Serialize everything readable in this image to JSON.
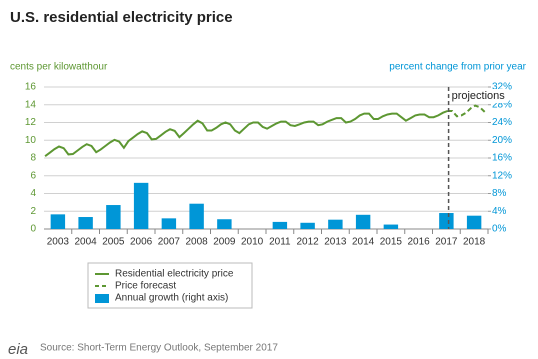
{
  "chart_data": {
    "type": "combo",
    "title": "U.S. residential electricity price",
    "y_label": "cents per kilowatthour",
    "y2_label": "percent change from prior year",
    "source": "Source: Short-Term Energy Outlook, September 2017",
    "logo": "eia",
    "annotations": [
      {
        "text": "projections",
        "x": 2017.58
      }
    ],
    "x": [
      2003.04,
      2003.21,
      2003.38,
      2003.54,
      2003.71,
      2003.88,
      2004.04,
      2004.21,
      2004.38,
      2004.54,
      2004.71,
      2004.88,
      2005.04,
      2005.21,
      2005.38,
      2005.54,
      2005.71,
      2005.88,
      2006.04,
      2006.21,
      2006.38,
      2006.54,
      2006.71,
      2006.88,
      2007.04,
      2007.21,
      2007.38,
      2007.54,
      2007.71,
      2007.88,
      2008.04,
      2008.21,
      2008.38,
      2008.54,
      2008.71,
      2008.88,
      2009.04,
      2009.21,
      2009.38,
      2009.54,
      2009.71,
      2009.88,
      2010.04,
      2010.21,
      2010.38,
      2010.54,
      2010.71,
      2010.88,
      2011.04,
      2011.21,
      2011.38,
      2011.54,
      2011.71,
      2011.88,
      2012.04,
      2012.21,
      2012.38,
      2012.54,
      2012.71,
      2012.88,
      2013.04,
      2013.21,
      2013.38,
      2013.54,
      2013.71,
      2013.88,
      2014.04,
      2014.21,
      2014.38,
      2014.54,
      2014.71,
      2014.88,
      2015.04,
      2015.21,
      2015.38,
      2015.54,
      2015.71,
      2015.88,
      2016.04,
      2016.21,
      2016.38,
      2016.54,
      2016.71,
      2016.88,
      2017.04,
      2017.21,
      2017.38,
      2017.54,
      2017.71,
      2017.88,
      2018.04,
      2018.21,
      2018.38,
      2018.54,
      2018.71,
      2018.88
    ],
    "series": [
      {
        "name": "Residential electricity price",
        "color": "#5d9732",
        "style": "solid",
        "values": [
          8.2,
          8.6,
          9.0,
          9.3,
          9.1,
          8.4,
          8.45,
          8.85,
          9.25,
          9.55,
          9.35,
          8.65,
          8.95,
          9.35,
          9.75,
          10.05,
          9.85,
          9.15,
          9.9,
          10.3,
          10.7,
          11.0,
          10.8,
          10.1,
          10.15,
          10.55,
          10.95,
          11.25,
          11.05,
          10.35,
          10.8,
          11.3,
          11.8,
          12.2,
          11.9,
          11.1,
          11.1,
          11.4,
          11.8,
          12.0,
          11.8,
          11.1,
          10.8,
          11.3,
          11.8,
          12.0,
          12.0,
          11.5,
          11.3,
          11.6,
          11.9,
          12.1,
          12.1,
          11.7,
          11.6,
          11.8,
          12.0,
          12.1,
          12.1,
          11.7,
          11.8,
          12.1,
          12.3,
          12.5,
          12.5,
          12.0,
          12.1,
          12.4,
          12.8,
          13.0,
          13.0,
          12.4,
          12.4,
          12.7,
          12.9,
          13.0,
          13.0,
          12.6,
          12.2,
          12.5,
          12.8,
          12.9,
          12.9,
          12.6,
          12.6,
          12.8,
          13.1,
          13.3,
          null,
          null,
          null,
          null,
          null,
          null,
          null,
          null
        ]
      },
      {
        "name": "Price forecast",
        "color": "#5d9732",
        "style": "dashed",
        "values": [
          null,
          null,
          null,
          null,
          null,
          null,
          null,
          null,
          null,
          null,
          null,
          null,
          null,
          null,
          null,
          null,
          null,
          null,
          null,
          null,
          null,
          null,
          null,
          null,
          null,
          null,
          null,
          null,
          null,
          null,
          null,
          null,
          null,
          null,
          null,
          null,
          null,
          null,
          null,
          null,
          null,
          null,
          null,
          null,
          null,
          null,
          null,
          null,
          null,
          null,
          null,
          null,
          null,
          null,
          null,
          null,
          null,
          null,
          null,
          null,
          null,
          null,
          null,
          null,
          null,
          null,
          null,
          null,
          null,
          null,
          null,
          null,
          null,
          null,
          null,
          null,
          null,
          null,
          null,
          null,
          null,
          null,
          null,
          null,
          null,
          null,
          null,
          13.3,
          13.3,
          12.7,
          12.8,
          13.1,
          13.6,
          13.9,
          13.7,
          13.2
        ]
      },
      {
        "name": "Annual growth (right axis)",
        "color": "#0096d7",
        "axis": "y2",
        "kind": "bar",
        "x": [
          2003.5,
          2004.5,
          2005.5,
          2006.5,
          2007.5,
          2008.5,
          2009.5,
          2010.5,
          2011.5,
          2012.5,
          2013.5,
          2014.5,
          2015.5,
          2016.5,
          2017.5,
          2018.5
        ],
        "values": [
          3.3,
          2.7,
          5.4,
          10.4,
          2.4,
          5.7,
          2.2,
          0,
          1.6,
          1.4,
          2.1,
          3.2,
          1.0,
          0,
          3.6,
          3.0
        ]
      }
    ],
    "xlim": [
      2003,
      2019
    ],
    "xticks": [
      {
        "value": 2003.5,
        "label": "2003"
      },
      {
        "value": 2004.5,
        "label": "2004"
      },
      {
        "value": 2005.5,
        "label": "2005"
      },
      {
        "value": 2006.5,
        "label": "2006"
      },
      {
        "value": 2007.5,
        "label": "2007"
      },
      {
        "value": 2008.5,
        "label": "2008"
      },
      {
        "value": 2009.5,
        "label": "2009"
      },
      {
        "value": 2010.5,
        "label": "2010"
      },
      {
        "value": 2011.5,
        "label": "2011"
      },
      {
        "value": 2012.5,
        "label": "2012"
      },
      {
        "value": 2013.5,
        "label": "2013"
      },
      {
        "value": 2014.5,
        "label": "2014"
      },
      {
        "value": 2015.5,
        "label": "2015"
      },
      {
        "value": 2016.5,
        "label": "2016"
      },
      {
        "value": 2017.5,
        "label": "2017"
      },
      {
        "value": 2018.5,
        "label": "2018"
      }
    ],
    "ylim": [
      0,
      16
    ],
    "yticks": [
      0,
      2,
      4,
      6,
      8,
      10,
      12,
      14,
      16
    ],
    "y2lim": [
      0,
      32
    ],
    "y2ticks": [
      {
        "value": 0,
        "label": "0%"
      },
      {
        "value": 4,
        "label": "4%"
      },
      {
        "value": 8,
        "label": "8%"
      },
      {
        "value": 12,
        "label": "12%"
      },
      {
        "value": 16,
        "label": "16%"
      },
      {
        "value": 20,
        "label": "20%"
      },
      {
        "value": 24,
        "label": "24%"
      },
      {
        "value": 28,
        "label": "28%"
      },
      {
        "value": 32,
        "label": "32%"
      }
    ],
    "grid": true
  }
}
